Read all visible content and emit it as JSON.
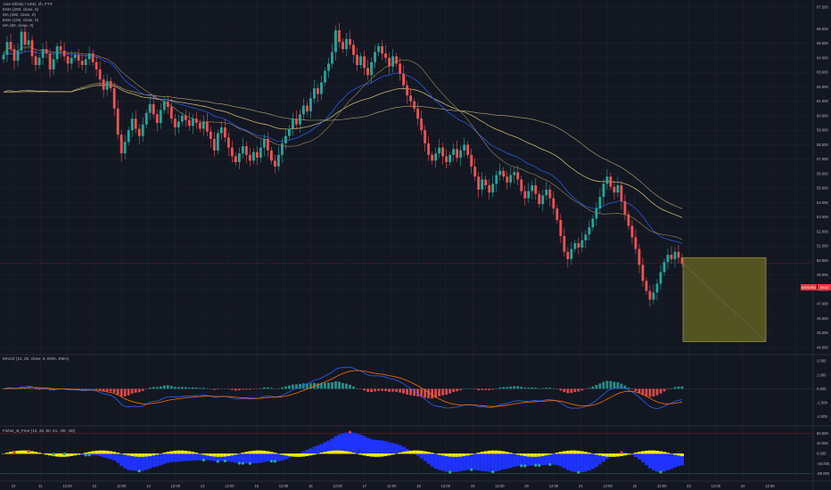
{
  "legend": {
    "title": "Axie Infinity / USD, 1h, FTX",
    "ind1": "EMA (200, close, 0)",
    "ind2": "MA (200, close, 0)",
    "ind3": "EMA (100, close, 0)",
    "ind4": "MA (50, close, 0)"
  },
  "macd_legend": "MACD (12, 26, close, 9, EMA, EMA)",
  "fisher_legend": "Fisher_B_Free (10, 25, 80, 51, -80, -50)",
  "price_tag": "AXSUSD",
  "price_tag_value": "49.81",
  "colors": {
    "background": "#131722",
    "grid": "#1e222d",
    "up": "#26a69a",
    "down": "#ef5350",
    "ema200": "#c9b36b",
    "ma200": "#bcaa70",
    "ema100": "#2962ff",
    "ma50": "#9e8a5a",
    "macd": "#2962ff",
    "signal": "#ff6d00",
    "hist_up": "#26a69a",
    "hist_down": "#ff5252",
    "fisher_blue": "#1e33ff",
    "fisher_yellow": "#f5ea00",
    "position_box": "#545423"
  },
  "chart_data": {
    "type": "candlestick",
    "price_axis_ticks": [
      "67.500",
      "66.000",
      "65.000",
      "64.000",
      "63.000",
      "62.000",
      "61.000",
      "60.000",
      "59.000",
      "58.000",
      "57.000",
      "56.000",
      "55.000",
      "54.000",
      "53.000",
      "52.000",
      "51.000",
      "50.000",
      "49.000",
      "48.000",
      "47.000",
      "46.000",
      "45.000",
      "44.000"
    ],
    "time_axis_ticks": [
      "10",
      "11",
      "12:00",
      "12",
      "12:00",
      "13",
      "12:00",
      "14",
      "12:00",
      "15",
      "12:00",
      "16",
      "12:00",
      "17",
      "12:00",
      "18",
      "12:00",
      "19",
      "12:00",
      "20",
      "12:00",
      "21",
      "12:00",
      "22",
      "12:00",
      "23",
      "12:00",
      "24",
      "12:00"
    ],
    "macd_ticks": [
      "2.000",
      "1.000",
      "0.000",
      "-1.000",
      "-2.000"
    ],
    "fisher_ticks": [
      "80.000",
      "40.000",
      "0.000",
      "-40.000",
      "-80.000"
    ],
    "close_series": [
      64.2,
      65.1,
      64.6,
      63.8,
      64.5,
      65.8,
      64.9,
      65.2,
      64.1,
      63.5,
      64.0,
      64.6,
      64.3,
      63.2,
      63.9,
      64.8,
      64.5,
      64.1,
      63.6,
      64.0,
      64.2,
      63.8,
      63.5,
      63.9,
      64.3,
      63.7,
      63.2,
      62.5,
      61.8,
      62.4,
      61.9,
      60.5,
      58.7,
      57.4,
      58.2,
      59.0,
      59.8,
      59.1,
      58.6,
      59.4,
      60.2,
      60.8,
      60.1,
      59.5,
      60.4,
      61.0,
      60.6,
      59.8,
      59.2,
      59.6,
      60.0,
      59.7,
      59.3,
      59.8,
      59.5,
      59.1,
      59.6,
      58.9,
      58.4,
      57.6,
      58.8,
      59.2,
      58.5,
      57.8,
      57.2,
      56.8,
      57.4,
      57.9,
      57.3,
      56.9,
      57.5,
      57.1,
      57.8,
      58.4,
      57.6,
      56.9,
      56.5,
      57.3,
      58.1,
      58.6,
      59.1,
      59.8,
      59.4,
      60.1,
      60.7,
      60.3,
      61.2,
      61.9,
      61.5,
      62.3,
      63.1,
      63.6,
      64.4,
      65.9,
      65.1,
      64.6,
      65.3,
      64.9,
      64.2,
      63.5,
      64.1,
      63.3,
      62.8,
      63.7,
      64.4,
      64.8,
      64.3,
      64.0,
      63.4,
      64.1,
      63.6,
      62.9,
      62.1,
      61.4,
      61.0,
      60.5,
      59.8,
      59.0,
      58.1,
      57.3,
      56.9,
      57.4,
      57.8,
      57.2,
      56.8,
      57.3,
      57.7,
      57.1,
      57.6,
      58.0,
      57.3,
      56.5,
      55.8,
      54.9,
      55.6,
      55.2,
      54.7,
      55.3,
      55.9,
      56.2,
      55.8,
      55.4,
      55.9,
      56.1,
      55.6,
      54.8,
      54.3,
      54.8,
      55.2,
      54.6,
      53.9,
      54.5,
      54.9,
      54.3,
      53.6,
      52.8,
      51.7,
      50.6,
      50.1,
      50.8,
      51.2,
      50.9,
      51.4,
      51.8,
      52.3,
      52.9,
      53.6,
      54.4,
      55.3,
      55.8,
      55.1,
      54.7,
      55.2,
      54.1,
      53.2,
      52.4,
      51.6,
      50.8,
      49.7,
      48.6,
      47.9,
      47.3,
      47.8,
      48.4,
      49.2,
      49.9,
      50.4,
      50.1,
      50.6,
      50.2,
      49.8
    ],
    "position_box": {
      "entry": 49.8,
      "target": 44.4,
      "stop": 50.2
    },
    "macd_ticks_count": 5
  }
}
